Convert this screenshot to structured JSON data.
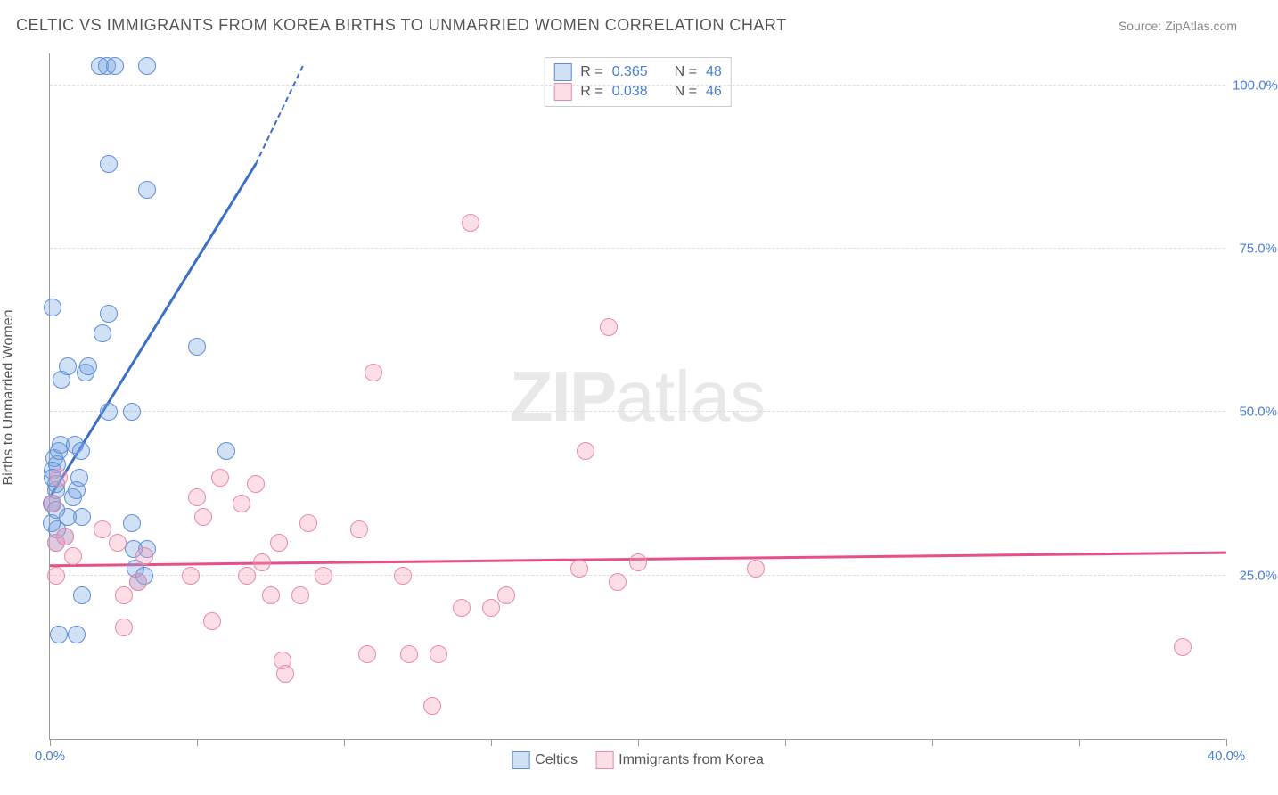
{
  "title": "CELTIC VS IMMIGRANTS FROM KOREA BIRTHS TO UNMARRIED WOMEN CORRELATION CHART",
  "source_label": "Source: ZipAtlas.com",
  "watermark": {
    "bold": "ZIP",
    "rest": "atlas"
  },
  "yaxis": {
    "label": "Births to Unmarried Women",
    "label_color": "#555555",
    "min": 0,
    "max": 105,
    "ticks": [
      25,
      50,
      75,
      100
    ],
    "tick_labels": [
      "25.0%",
      "50.0%",
      "75.0%",
      "100.0%"
    ],
    "tick_color": "#4a7fd8",
    "grid_color": "#dddddd"
  },
  "xaxis": {
    "min": 0,
    "max": 40,
    "ticks": [
      0,
      5,
      10,
      15,
      20,
      25,
      30,
      35,
      40
    ],
    "end_labels": {
      "left": "0.0%",
      "right": "40.0%"
    },
    "label_color": "#4a7fd8",
    "tick_color": "#999999"
  },
  "series": [
    {
      "name": "Celtics",
      "fill": "rgba(120,165,225,0.35)",
      "stroke": "#5e8fd6",
      "r_label": "R =",
      "r_value": "0.365",
      "n_label": "N =",
      "n_value": "48",
      "marker_radius": 10,
      "trend": {
        "x1": 0,
        "y1": 37,
        "x2": 7.0,
        "y2": 88,
        "dash_to_x": 8.6,
        "dash_to_y": 103,
        "color": "#3d6fc7",
        "width": 3
      },
      "points": [
        [
          0.1,
          36
        ],
        [
          0.2,
          38
        ],
        [
          0.15,
          43
        ],
        [
          0.25,
          42
        ],
        [
          0.3,
          44
        ],
        [
          0.35,
          45
        ],
        [
          0.1,
          41
        ],
        [
          0.2,
          39
        ],
        [
          0.8,
          37
        ],
        [
          0.9,
          38
        ],
        [
          0.85,
          45
        ],
        [
          1.0,
          40
        ],
        [
          1.1,
          34
        ],
        [
          1.05,
          44
        ],
        [
          0.4,
          55
        ],
        [
          0.6,
          57
        ],
        [
          1.2,
          56
        ],
        [
          1.3,
          57
        ],
        [
          1.8,
          62
        ],
        [
          2.0,
          65
        ],
        [
          2.0,
          50
        ],
        [
          2.8,
          50
        ],
        [
          2.9,
          26
        ],
        [
          3.0,
          24
        ],
        [
          3.2,
          25
        ],
        [
          3.3,
          29
        ],
        [
          0.3,
          16
        ],
        [
          0.9,
          16
        ],
        [
          1.1,
          22
        ],
        [
          0.5,
          31
        ],
        [
          0.6,
          34
        ],
        [
          2.8,
          33
        ],
        [
          2.85,
          29
        ],
        [
          5.0,
          60
        ],
        [
          6.0,
          44
        ],
        [
          3.3,
          84
        ],
        [
          2.0,
          88
        ],
        [
          1.7,
          103
        ],
        [
          1.95,
          103
        ],
        [
          2.2,
          103
        ],
        [
          3.3,
          103
        ],
        [
          0.2,
          30
        ],
        [
          0.25,
          32
        ],
        [
          0.05,
          33
        ],
        [
          0.05,
          36
        ],
        [
          0.1,
          40
        ],
        [
          0.2,
          35
        ],
        [
          0.1,
          66
        ]
      ]
    },
    {
      "name": "Immigrants from Korea",
      "fill": "rgba(245,160,185,0.35)",
      "stroke": "#e98aa8",
      "r_label": "R =",
      "r_value": "0.038",
      "n_label": "N =",
      "n_value": "46",
      "marker_radius": 10,
      "trend": {
        "x1": 0,
        "y1": 26.5,
        "x2": 40,
        "y2": 28.5,
        "color": "#e74f8a",
        "width": 2.5
      },
      "points": [
        [
          0.1,
          36
        ],
        [
          0.2,
          30
        ],
        [
          0.5,
          31
        ],
        [
          0.8,
          28
        ],
        [
          0.2,
          25
        ],
        [
          0.3,
          40
        ],
        [
          1.8,
          32
        ],
        [
          2.3,
          30
        ],
        [
          2.5,
          17
        ],
        [
          3.0,
          24
        ],
        [
          3.2,
          28
        ],
        [
          2.5,
          22
        ],
        [
          4.8,
          25
        ],
        [
          5.0,
          37
        ],
        [
          5.2,
          34
        ],
        [
          5.5,
          18
        ],
        [
          5.8,
          40
        ],
        [
          6.5,
          36
        ],
        [
          6.7,
          25
        ],
        [
          7.0,
          39
        ],
        [
          7.2,
          27
        ],
        [
          7.5,
          22
        ],
        [
          7.8,
          30
        ],
        [
          7.9,
          12
        ],
        [
          8.0,
          10
        ],
        [
          8.5,
          22
        ],
        [
          8.8,
          33
        ],
        [
          9.3,
          25
        ],
        [
          10.5,
          32
        ],
        [
          10.8,
          13
        ],
        [
          11.0,
          56
        ],
        [
          12.0,
          25
        ],
        [
          12.2,
          13
        ],
        [
          13.0,
          5
        ],
        [
          13.2,
          13
        ],
        [
          14.0,
          20
        ],
        [
          14.3,
          79
        ],
        [
          15.0,
          20
        ],
        [
          15.5,
          22
        ],
        [
          18.0,
          26
        ],
        [
          18.2,
          44
        ],
        [
          19.0,
          63
        ],
        [
          19.3,
          24
        ],
        [
          20.0,
          27
        ],
        [
          24.0,
          26
        ],
        [
          38.5,
          14
        ]
      ]
    }
  ],
  "legend_top_text_color": "#555555",
  "legend_value_color": "#4a7fd8",
  "legend_bottom_label_a": "Celtics",
  "legend_bottom_label_b": "Immigrants from Korea"
}
